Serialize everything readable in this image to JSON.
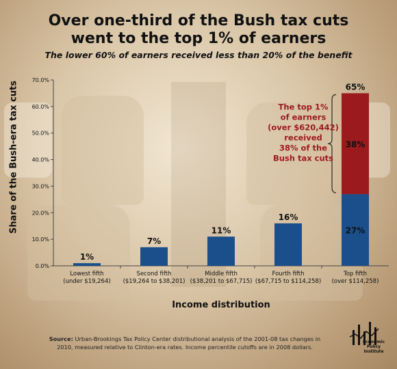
{
  "title_line1": "Over one-third of the Bush tax cuts",
  "title_line2": "went to the top 1% of earners",
  "subtitle": "The lower 60% of earners received less than 20% of the benefit",
  "annotation": [
    "The top 1%",
    "of earners",
    "(over $620,442)",
    "received",
    "38% of the",
    "Bush tax cuts"
  ],
  "source_label": "Source:",
  "source_text": "Urban-Brookings Tax Policy Center distributional analysis of the 2001-08 tax changes in 2010, measured relative to Clinton-era rates. Income percentile cutoffs are in 2008 dollars.",
  "logo_text": [
    "Economic",
    "Policy",
    "Institute"
  ],
  "colors": {
    "blue": "#1a4f8b",
    "red": "#9b1a1e",
    "annotation": "#9b1a1e"
  },
  "chart_data": {
    "type": "bar",
    "title": "Over one-third of the Bush tax cuts went to the top 1% of earners",
    "subtitle": "The lower 60% of earners received less than 20% of the benefit",
    "xlabel": "Income distribution",
    "ylabel": "Share of the Bush-era tax cuts",
    "ylim": [
      0,
      70
    ],
    "yticks": [
      "0.0%",
      "10.0%",
      "20.0%",
      "30.0%",
      "40.0%",
      "50.0%",
      "60.0%",
      "70.0%"
    ],
    "categories": [
      {
        "name": "Lowest fifth",
        "range": "(under $19,264)"
      },
      {
        "name": "Second fifth",
        "range": "($19,264 to $38,201)"
      },
      {
        "name": "Middle fifth",
        "range": "($38,201 to $67,715)"
      },
      {
        "name": "Fourth fifth",
        "range": "($67,715 to $114,258)"
      },
      {
        "name": "Top fifth",
        "range": "(over $114,258)"
      }
    ],
    "values": [
      1,
      7,
      11,
      16,
      65
    ],
    "value_labels": [
      "1%",
      "7%",
      "11%",
      "16%",
      "65%"
    ],
    "top_fifth_stack": [
      {
        "value": 27,
        "label": "27%"
      },
      {
        "value": 38,
        "label": "38%"
      }
    ],
    "grid": false,
    "legend": "none"
  }
}
